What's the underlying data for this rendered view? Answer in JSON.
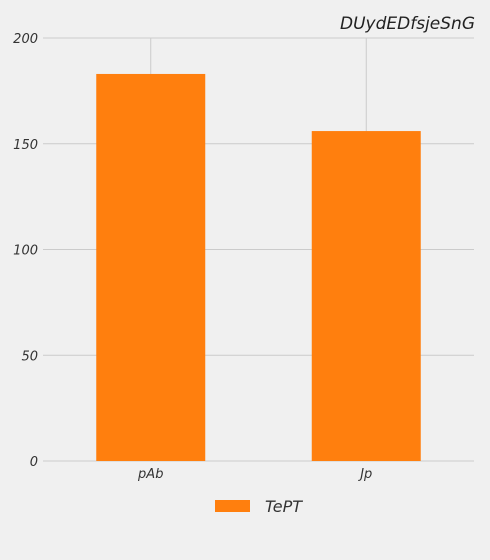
{
  "chart_data": {
    "type": "bar",
    "title": "DUydEDfsjeSnG",
    "xlabel": "",
    "ylabel": "",
    "categories": [
      "pAb",
      "Jp"
    ],
    "series": [
      {
        "name": "TePT",
        "values": [
          183,
          156
        ],
        "color": "#ff7f0e"
      }
    ],
    "ylim": [
      0,
      200
    ],
    "yticks": [
      0,
      50,
      100,
      150,
      200
    ],
    "ytick_labels": [
      "0",
      "50",
      "100",
      "150",
      "200"
    ],
    "grid": true,
    "legend_position": "bottom"
  }
}
